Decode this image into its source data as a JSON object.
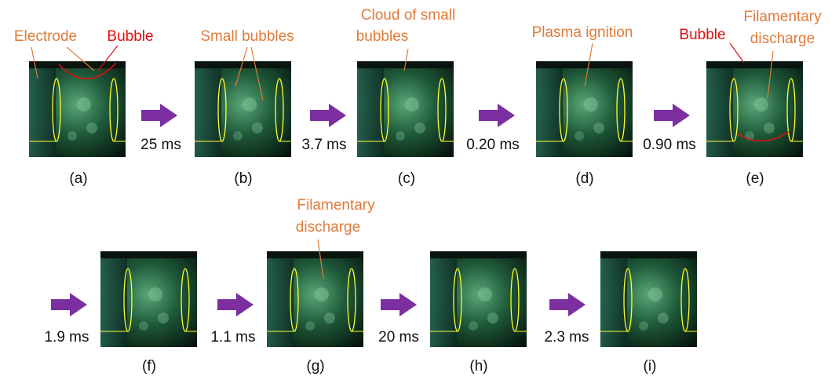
{
  "panels": [
    {
      "label": "(a)",
      "annotations": [
        {
          "lines": [
            "Electrode"
          ]
        },
        {
          "lines": [
            "Bubble"
          ]
        }
      ]
    },
    {
      "label": "(b)",
      "annotations": [
        {
          "lines": [
            "Small bubbles"
          ]
        }
      ]
    },
    {
      "label": "(c)",
      "annotations": [
        {
          "lines": [
            "Cloud of small",
            "bubbles"
          ]
        }
      ]
    },
    {
      "label": "(d)",
      "annotations": [
        {
          "lines": [
            "Plasma ignition"
          ]
        }
      ]
    },
    {
      "label": "(e)",
      "annotations": [
        {
          "lines": [
            "Bubble"
          ]
        },
        {
          "lines": [
            "Filamentary",
            "discharge"
          ]
        }
      ]
    },
    {
      "label": "(f)",
      "annotations": []
    },
    {
      "label": "(g)",
      "annotations": [
        {
          "lines": [
            "Filamentary",
            "discharge"
          ]
        }
      ]
    },
    {
      "label": "(h)",
      "annotations": []
    },
    {
      "label": "(i)",
      "annotations": []
    }
  ],
  "transitions": [
    "25 ms",
    "3.7 ms",
    "0.20 ms",
    "0.90 ms",
    "1.9 ms",
    "1.1 ms",
    "20 ms",
    "2.3 ms"
  ]
}
